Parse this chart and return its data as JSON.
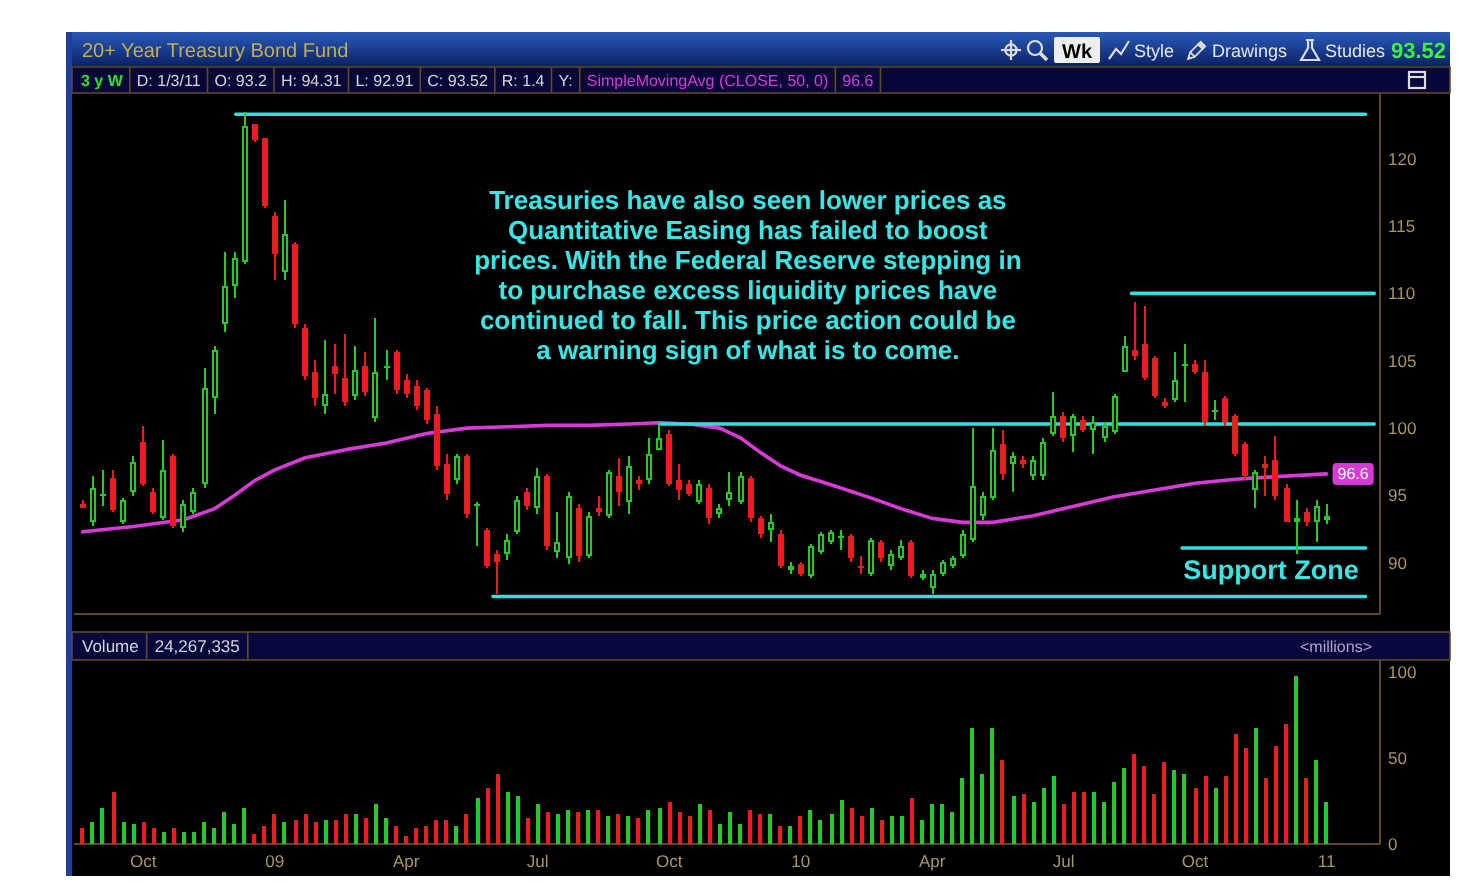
{
  "chart_data": [
    {
      "type": "candlestick",
      "title": "20+ Year Treasury Bond Fund",
      "x": [
        "2008-08-25",
        "2008-09-01",
        "2008-09-08",
        "2008-09-15",
        "2008-09-22",
        "2008-09-29",
        "2008-10-06",
        "2008-10-13",
        "2008-10-20",
        "2008-10-27",
        "2008-11-03",
        "2008-11-10",
        "2008-11-17",
        "2008-11-24",
        "2008-12-01",
        "2008-12-08",
        "2008-12-15",
        "2008-12-22",
        "2008-12-29",
        "2009-01-05",
        "2009-01-12",
        "2009-01-19",
        "2009-01-26",
        "2009-02-02",
        "2009-02-09",
        "2009-02-16",
        "2009-02-23",
        "2009-03-02",
        "2009-03-09",
        "2009-03-16",
        "2009-03-23",
        "2009-03-30",
        "2009-04-06",
        "2009-04-13",
        "2009-04-20",
        "2009-04-27",
        "2009-05-04",
        "2009-05-11",
        "2009-05-18",
        "2009-05-25",
        "2009-06-01",
        "2009-06-08",
        "2009-06-15",
        "2009-06-22",
        "2009-06-29",
        "2009-07-06",
        "2009-07-13",
        "2009-07-20",
        "2009-07-27",
        "2009-08-03",
        "2009-08-10",
        "2009-08-17",
        "2009-08-24",
        "2009-08-31",
        "2009-09-07",
        "2009-09-14",
        "2009-09-21",
        "2009-09-28",
        "2009-10-05",
        "2009-10-12",
        "2009-10-19",
        "2009-10-26",
        "2009-11-02",
        "2009-11-09",
        "2009-11-16",
        "2009-11-23",
        "2009-11-30",
        "2009-12-07",
        "2009-12-14",
        "2009-12-21",
        "2009-12-28",
        "2010-01-04",
        "2010-01-11",
        "2010-01-18",
        "2010-01-25",
        "2010-02-01",
        "2010-02-08",
        "2010-02-15",
        "2010-02-22",
        "2010-03-01",
        "2010-03-08",
        "2010-03-15",
        "2010-03-22",
        "2010-03-29",
        "2010-04-05",
        "2010-04-12",
        "2010-04-19",
        "2010-04-26",
        "2010-05-03",
        "2010-05-10",
        "2010-05-17",
        "2010-05-24",
        "2010-05-31",
        "2010-06-07",
        "2010-06-14",
        "2010-06-21",
        "2010-06-28",
        "2010-07-05",
        "2010-07-12",
        "2010-07-19",
        "2010-07-26",
        "2010-08-02",
        "2010-08-09",
        "2010-08-16",
        "2010-08-23",
        "2010-08-30",
        "2010-09-06",
        "2010-09-13",
        "2010-09-20",
        "2010-09-27",
        "2010-10-04",
        "2010-10-11",
        "2010-10-18",
        "2010-10-25",
        "2010-11-01",
        "2010-11-08",
        "2010-11-15",
        "2010-11-22",
        "2010-11-29",
        "2010-12-06",
        "2010-12-13",
        "2010-12-20",
        "2010-12-27",
        "2011-01-03"
      ],
      "ohlc": [
        [
          94.3,
          94.6,
          94.0,
          94.1
        ],
        [
          93.1,
          96.4,
          92.8,
          95.6
        ],
        [
          94.9,
          96.9,
          94.2,
          95.1
        ],
        [
          96.3,
          96.9,
          93.7,
          93.9
        ],
        [
          93.0,
          94.8,
          92.9,
          94.6
        ],
        [
          95.2,
          97.9,
          94.9,
          97.5
        ],
        [
          98.9,
          100.1,
          95.7,
          95.9
        ],
        [
          95.2,
          95.5,
          93.6,
          93.8
        ],
        [
          93.4,
          99.1,
          93.2,
          96.9
        ],
        [
          97.9,
          98.1,
          92.6,
          92.8
        ],
        [
          92.6,
          94.7,
          92.3,
          94.4
        ],
        [
          93.8,
          95.6,
          93.6,
          95.3
        ],
        [
          95.8,
          104.5,
          95.6,
          103.0
        ],
        [
          102.2,
          106.1,
          101.1,
          105.8
        ],
        [
          107.8,
          113.0,
          107.1,
          110.6
        ],
        [
          110.5,
          113.0,
          109.6,
          112.6
        ],
        [
          112.4,
          123.4,
          112.2,
          122.4
        ],
        [
          122.5,
          122.6,
          121.2,
          121.4
        ],
        [
          121.5,
          121.6,
          116.3,
          116.5
        ],
        [
          115.7,
          116.0,
          111.0,
          112.9
        ],
        [
          111.6,
          117.0,
          111.0,
          114.4
        ],
        [
          113.6,
          113.8,
          107.5,
          107.7
        ],
        [
          107.5,
          107.7,
          103.6,
          103.8
        ],
        [
          104.1,
          105.1,
          101.6,
          102.2
        ],
        [
          101.6,
          106.6,
          101.1,
          102.5
        ],
        [
          104.6,
          106.3,
          102.6,
          104.0
        ],
        [
          103.7,
          107.0,
          101.6,
          101.9
        ],
        [
          102.4,
          106.1,
          102.1,
          104.3
        ],
        [
          104.6,
          105.6,
          102.4,
          102.7
        ],
        [
          100.7,
          108.1,
          100.5,
          104.1
        ],
        [
          104.5,
          105.8,
          103.6,
          104.6
        ],
        [
          105.6,
          105.8,
          102.6,
          102.8
        ],
        [
          103.6,
          104.0,
          102.2,
          102.5
        ],
        [
          103.1,
          103.5,
          101.4,
          101.6
        ],
        [
          102.8,
          103.0,
          100.3,
          100.6
        ],
        [
          101.1,
          101.6,
          96.9,
          97.2
        ],
        [
          97.4,
          98.1,
          94.7,
          95.1
        ],
        [
          96.1,
          98.1,
          95.9,
          98.0
        ],
        [
          98.0,
          98.1,
          93.4,
          93.6
        ],
        [
          94.3,
          94.5,
          91.2,
          94.4
        ],
        [
          92.4,
          92.6,
          89.6,
          89.8
        ],
        [
          90.6,
          91.0,
          87.7,
          90.1
        ],
        [
          90.6,
          92.2,
          90.2,
          91.7
        ],
        [
          92.3,
          95.0,
          92.1,
          94.7
        ],
        [
          95.2,
          95.5,
          93.9,
          94.2
        ],
        [
          94.0,
          97.1,
          93.6,
          96.4
        ],
        [
          96.4,
          96.6,
          91.0,
          91.2
        ],
        [
          90.8,
          93.8,
          90.3,
          91.6
        ],
        [
          90.3,
          95.2,
          89.9,
          95.0
        ],
        [
          94.0,
          94.3,
          90.0,
          90.5
        ],
        [
          90.5,
          93.8,
          90.3,
          93.5
        ],
        [
          94.1,
          95.0,
          93.5,
          93.8
        ],
        [
          93.5,
          96.9,
          93.3,
          96.7
        ],
        [
          96.4,
          97.8,
          94.2,
          95.2
        ],
        [
          94.5,
          97.9,
          93.6,
          97.2
        ],
        [
          96.2,
          96.5,
          95.4,
          95.8
        ],
        [
          96.2,
          99.2,
          95.9,
          98.1
        ],
        [
          98.4,
          100.4,
          98.3,
          99.2
        ],
        [
          99.6,
          99.8,
          95.7,
          95.9
        ],
        [
          96.2,
          97.4,
          94.7,
          95.4
        ],
        [
          95.8,
          96.2,
          94.9,
          95.1
        ],
        [
          94.5,
          96.2,
          94.3,
          95.9
        ],
        [
          95.6,
          95.8,
          92.9,
          93.3
        ],
        [
          93.6,
          94.4,
          93.4,
          94.1
        ],
        [
          94.7,
          96.7,
          94.2,
          95.3
        ],
        [
          94.5,
          96.7,
          94.3,
          96.5
        ],
        [
          96.3,
          96.5,
          93.1,
          93.3
        ],
        [
          93.3,
          93.5,
          91.9,
          92.1
        ],
        [
          92.5,
          93.6,
          91.5,
          93.0
        ],
        [
          92.2,
          92.4,
          89.6,
          89.8
        ],
        [
          89.5,
          90.0,
          89.2,
          89.8
        ],
        [
          89.9,
          90.1,
          89.0,
          89.2
        ],
        [
          89.0,
          91.4,
          88.9,
          91.2
        ],
        [
          90.8,
          92.3,
          90.6,
          92.1
        ],
        [
          91.6,
          92.5,
          91.4,
          92.3
        ],
        [
          91.9,
          92.5,
          90.9,
          92.0
        ],
        [
          92.0,
          92.2,
          90.0,
          90.3
        ],
        [
          89.8,
          90.5,
          89.1,
          89.6
        ],
        [
          89.2,
          91.9,
          89.0,
          91.7
        ],
        [
          91.5,
          91.7,
          90.1,
          90.3
        ],
        [
          89.8,
          91.0,
          89.5,
          90.7
        ],
        [
          90.4,
          91.7,
          90.2,
          91.2
        ],
        [
          91.5,
          91.7,
          88.8,
          89.0
        ],
        [
          88.9,
          89.5,
          88.7,
          89.2
        ],
        [
          88.2,
          89.5,
          87.7,
          89.2
        ],
        [
          89.2,
          90.2,
          89.0,
          90.0
        ],
        [
          89.8,
          90.5,
          89.6,
          90.3
        ],
        [
          90.5,
          92.4,
          90.3,
          92.2
        ],
        [
          91.7,
          100.0,
          91.5,
          95.7
        ],
        [
          93.5,
          95.2,
          93.2,
          94.9
        ],
        [
          94.8,
          100.0,
          94.7,
          98.4
        ],
        [
          98.8,
          99.9,
          96.2,
          96.6
        ],
        [
          97.4,
          98.2,
          95.2,
          97.9
        ],
        [
          97.7,
          98.0,
          97.1,
          97.4
        ],
        [
          96.4,
          97.9,
          96.2,
          97.7
        ],
        [
          96.4,
          99.3,
          96.2,
          99.0
        ],
        [
          99.5,
          102.7,
          99.4,
          100.9
        ],
        [
          100.9,
          101.2,
          99.0,
          99.3
        ],
        [
          99.4,
          101.1,
          98.2,
          100.9
        ],
        [
          100.6,
          100.9,
          99.7,
          99.9
        ],
        [
          99.9,
          100.9,
          98.1,
          100.4
        ],
        [
          99.2,
          100.4,
          98.9,
          100.1
        ],
        [
          99.7,
          102.6,
          99.5,
          102.4
        ],
        [
          104.2,
          106.8,
          104.1,
          106.1
        ],
        [
          105.8,
          109.4,
          105.1,
          105.3
        ],
        [
          106.3,
          109.0,
          103.6,
          103.7
        ],
        [
          105.2,
          105.4,
          102.2,
          102.4
        ],
        [
          102.0,
          102.2,
          101.5,
          101.7
        ],
        [
          102.1,
          105.6,
          102.0,
          103.6
        ],
        [
          104.7,
          106.3,
          101.9,
          104.8
        ],
        [
          104.8,
          105.0,
          104.0,
          104.2
        ],
        [
          104.2,
          105.1,
          100.2,
          100.4
        ],
        [
          101.3,
          102.1,
          100.6,
          101.4
        ],
        [
          102.2,
          102.4,
          100.2,
          100.4
        ],
        [
          100.9,
          101.1,
          97.9,
          98.1
        ],
        [
          98.8,
          99.0,
          96.2,
          96.4
        ],
        [
          95.4,
          96.9,
          94.0,
          96.7
        ],
        [
          97.4,
          97.9,
          95.0,
          97.1
        ],
        [
          97.7,
          99.4,
          94.7,
          95.0
        ],
        [
          95.6,
          95.8,
          93.0,
          93.1
        ],
        [
          93.1,
          94.7,
          90.7,
          93.3
        ],
        [
          93.8,
          94.0,
          92.8,
          93.0
        ],
        [
          93.0,
          94.7,
          91.5,
          94.2
        ],
        [
          93.2,
          94.31,
          92.91,
          93.52
        ]
      ],
      "colors": [
        "#ee1c1c",
        "#22cc22",
        "#22cc22",
        "#ee1c1c",
        "#22cc22",
        "#22cc22",
        "#ee1c1c",
        "#ee1c1c",
        "#22cc22",
        "#ee1c1c",
        "#22cc22",
        "#22cc22",
        "#22cc22",
        "#22cc22",
        "#22cc22",
        "#22cc22",
        "#22cc22",
        "#ee1c1c",
        "#ee1c1c",
        "#ee1c1c",
        "#22cc22",
        "#ee1c1c",
        "#ee1c1c",
        "#ee1c1c",
        "#22cc22",
        "#ee1c1c",
        "#ee1c1c",
        "#22cc22",
        "#ee1c1c",
        "#22cc22",
        "#22cc22",
        "#ee1c1c",
        "#ee1c1c",
        "#ee1c1c",
        "#ee1c1c",
        "#ee1c1c",
        "#ee1c1c",
        "#22cc22",
        "#ee1c1c",
        "#22cc22",
        "#ee1c1c",
        "#ee1c1c",
        "#22cc22",
        "#22cc22",
        "#ee1c1c",
        "#22cc22",
        "#ee1c1c",
        "#22cc22",
        "#22cc22",
        "#ee1c1c",
        "#22cc22",
        "#ee1c1c",
        "#22cc22",
        "#ee1c1c",
        "#22cc22",
        "#ee1c1c",
        "#22cc22",
        "#22cc22",
        "#ee1c1c",
        "#ee1c1c",
        "#ee1c1c",
        "#22cc22",
        "#ee1c1c",
        "#22cc22",
        "#22cc22",
        "#22cc22",
        "#ee1c1c",
        "#ee1c1c",
        "#22cc22",
        "#ee1c1c",
        "#22cc22",
        "#ee1c1c",
        "#22cc22",
        "#22cc22",
        "#22cc22",
        "#22cc22",
        "#ee1c1c",
        "#ee1c1c",
        "#22cc22",
        "#ee1c1c",
        "#22cc22",
        "#22cc22",
        "#ee1c1c",
        "#22cc22",
        "#22cc22",
        "#22cc22",
        "#22cc22",
        "#22cc22",
        "#22cc22",
        "#22cc22",
        "#22cc22",
        "#ee1c1c",
        "#22cc22",
        "#ee1c1c",
        "#22cc22",
        "#22cc22",
        "#22cc22",
        "#ee1c1c",
        "#22cc22",
        "#ee1c1c",
        "#22cc22",
        "#22cc22",
        "#22cc22",
        "#22cc22",
        "#ee1c1c",
        "#ee1c1c",
        "#ee1c1c",
        "#ee1c1c",
        "#22cc22",
        "#22cc22",
        "#ee1c1c",
        "#ee1c1c",
        "#22cc22",
        "#ee1c1c",
        "#ee1c1c",
        "#ee1c1c",
        "#22cc22",
        "#ee1c1c",
        "#ee1c1c",
        "#ee1c1c",
        "#22cc22",
        "#ee1c1c",
        "#22cc22",
        "#22cc22"
      ],
      "xlim": [
        "2008-08-19",
        "2011-02-09"
      ],
      "ylim": [
        86.2,
        124.8
      ],
      "yticks": [
        90,
        95,
        100,
        105,
        110,
        115,
        120
      ],
      "tick_labels": "y",
      "series": [
        {
          "type": "line",
          "name": "SimpleMovingAvg (CLOSE, 50, 0)",
          "color": "#d83ad8",
          "x": [
            "2008-08-25",
            "2008-09-29",
            "2008-11-03",
            "2008-11-24",
            "2008-12-08",
            "2008-12-22",
            "2009-01-05",
            "2009-01-26",
            "2009-02-23",
            "2009-03-23",
            "2009-04-20",
            "2009-05-18",
            "2009-06-15",
            "2009-07-13",
            "2009-08-10",
            "2009-09-07",
            "2009-09-28",
            "2009-10-19",
            "2009-11-09",
            "2009-11-23",
            "2009-12-07",
            "2009-12-21",
            "2010-01-04",
            "2010-01-25",
            "2010-02-22",
            "2010-03-15",
            "2010-04-05",
            "2010-04-26",
            "2010-05-17",
            "2010-06-14",
            "2010-07-12",
            "2010-08-09",
            "2010-09-06",
            "2010-10-04",
            "2010-11-01",
            "2010-11-29",
            "2011-01-03"
          ],
          "values": [
            92.3,
            92.7,
            93.2,
            94.0,
            95.0,
            96.1,
            96.9,
            97.8,
            98.4,
            98.9,
            99.6,
            100.0,
            100.1,
            100.2,
            100.2,
            100.3,
            100.4,
            100.3,
            100.0,
            99.3,
            98.2,
            97.2,
            96.5,
            95.8,
            94.8,
            94.0,
            93.3,
            93.0,
            93.0,
            93.5,
            94.2,
            94.9,
            95.4,
            95.9,
            96.2,
            96.4,
            96.6
          ],
          "value_labels": [
            null,
            null,
            null,
            null,
            null,
            null,
            null,
            null,
            null,
            null,
            null,
            null,
            null,
            null,
            null,
            null,
            null,
            null,
            null,
            null,
            null,
            null,
            null,
            null,
            null,
            null,
            null,
            null,
            null,
            null,
            null,
            null,
            null,
            null,
            null,
            null,
            "96.6"
          ]
        },
        {
          "type": "line",
          "color": "#33dede",
          "x": [
            "2008-12-09",
            "2011-01-30"
          ],
          "values": [
            123.3,
            123.3
          ]
        },
        {
          "type": "line",
          "color": "#33dede",
          "x": [
            "2010-08-21",
            "2011-02-05"
          ],
          "values": [
            110,
            110
          ]
        },
        {
          "type": "line",
          "color": "#33dede",
          "x": [
            "2009-09-28",
            "2011-02-05"
          ],
          "values": [
            100.3,
            100.3
          ]
        },
        {
          "type": "line",
          "color": "#33dede",
          "x": [
            "2010-09-25",
            "2011-01-30"
          ],
          "values": [
            91.1,
            91.1
          ]
        },
        {
          "type": "line",
          "color": "#33dede",
          "x": [
            "2009-06-05",
            "2011-01-30"
          ],
          "values": [
            87.5,
            87.5
          ]
        }
      ],
      "annotations": [
        "Wk",
        "Style",
        "Drawings",
        "Studies",
        "93.52",
        "3 y W",
        "D: 1/3/11",
        "O: 93.2",
        "H: 94.31",
        "L: 92.91",
        "C: 93.52",
        "R: 1.4",
        "Y:",
        "96.6",
        "Treasuries have also seen lower prices as\nQuantitative Easing has failed to boost\nprices. With the Federal Reserve stepping in\nto purchase excess liquidity prices have\ncontinued to fall. This price action could be\na warning sign of what is to come.",
        "Support Zone"
      ]
    },
    {
      "type": "bar",
      "title": "Volume",
      "ylabel": "<millions>",
      "x": [
        "2008-08-25",
        "2008-09-01",
        "2008-09-08",
        "2008-09-15",
        "2008-09-22",
        "2008-09-29",
        "2008-10-06",
        "2008-10-13",
        "2008-10-20",
        "2008-10-27",
        "2008-11-03",
        "2008-11-10",
        "2008-11-17",
        "2008-11-24",
        "2008-12-01",
        "2008-12-08",
        "2008-12-15",
        "2008-12-22",
        "2008-12-29",
        "2009-01-05",
        "2009-01-12",
        "2009-01-19",
        "2009-01-26",
        "2009-02-02",
        "2009-02-09",
        "2009-02-16",
        "2009-02-23",
        "2009-03-02",
        "2009-03-09",
        "2009-03-16",
        "2009-03-23",
        "2009-03-30",
        "2009-04-06",
        "2009-04-13",
        "2009-04-20",
        "2009-04-27",
        "2009-05-04",
        "2009-05-11",
        "2009-05-18",
        "2009-05-25",
        "2009-06-01",
        "2009-06-08",
        "2009-06-15",
        "2009-06-22",
        "2009-06-29",
        "2009-07-06",
        "2009-07-13",
        "2009-07-20",
        "2009-07-27",
        "2009-08-03",
        "2009-08-10",
        "2009-08-17",
        "2009-08-24",
        "2009-08-31",
        "2009-09-07",
        "2009-09-14",
        "2009-09-21",
        "2009-09-28",
        "2009-10-05",
        "2009-10-12",
        "2009-10-19",
        "2009-10-26",
        "2009-11-02",
        "2009-11-09",
        "2009-11-16",
        "2009-11-23",
        "2009-11-30",
        "2009-12-07",
        "2009-12-14",
        "2009-12-21",
        "2009-12-28",
        "2010-01-04",
        "2010-01-11",
        "2010-01-18",
        "2010-01-25",
        "2010-02-01",
        "2010-02-08",
        "2010-02-15",
        "2010-02-22",
        "2010-03-01",
        "2010-03-08",
        "2010-03-15",
        "2010-03-22",
        "2010-03-29",
        "2010-04-05",
        "2010-04-12",
        "2010-04-19",
        "2010-04-26",
        "2010-05-03",
        "2010-05-10",
        "2010-05-17",
        "2010-05-24",
        "2010-05-31",
        "2010-06-07",
        "2010-06-14",
        "2010-06-21",
        "2010-06-28",
        "2010-07-05",
        "2010-07-12",
        "2010-07-19",
        "2010-07-26",
        "2010-08-02",
        "2010-08-09",
        "2010-08-16",
        "2010-08-23",
        "2010-08-30",
        "2010-09-06",
        "2010-09-13",
        "2010-09-20",
        "2010-09-27",
        "2010-10-04",
        "2010-10-11",
        "2010-10-18",
        "2010-10-25",
        "2010-11-01",
        "2010-11-08",
        "2010-11-15",
        "2010-11-22",
        "2010-11-29",
        "2010-12-06",
        "2010-12-13",
        "2010-12-20",
        "2010-12-27",
        "2011-01-03"
      ],
      "values": [
        9,
        13,
        21,
        30,
        13,
        12,
        13,
        9,
        7,
        9,
        7,
        7,
        13,
        9,
        19,
        12,
        21,
        6,
        11,
        18,
        13,
        14,
        17,
        13,
        14,
        14,
        17,
        18,
        15,
        23,
        15,
        11,
        5,
        9,
        11,
        14,
        14,
        11,
        17,
        27,
        33,
        41,
        30,
        28,
        15,
        23,
        19,
        17,
        20,
        19,
        20,
        20,
        16,
        18,
        16,
        15,
        20,
        21,
        25,
        19,
        16,
        23,
        20,
        12,
        19,
        12,
        20,
        17,
        18,
        11,
        11,
        16,
        20,
        14,
        18,
        26,
        21,
        16,
        21,
        14,
        16,
        16,
        27,
        14,
        23,
        23,
        19,
        38,
        67,
        41,
        68,
        49,
        28,
        29,
        25,
        32,
        40,
        23,
        30,
        30,
        30,
        24,
        36,
        44,
        52,
        45,
        29,
        48,
        43,
        41,
        32,
        40,
        32,
        39,
        64,
        56,
        67,
        38,
        57,
        70,
        98,
        38,
        49,
        24
      ],
      "colors": [
        "#ee1c1c",
        "#22cc22",
        "#22cc22",
        "#ee1c1c",
        "#22cc22",
        "#22cc22",
        "#ee1c1c",
        "#ee1c1c",
        "#22cc22",
        "#ee1c1c",
        "#22cc22",
        "#22cc22",
        "#22cc22",
        "#22cc22",
        "#22cc22",
        "#22cc22",
        "#22cc22",
        "#ee1c1c",
        "#ee1c1c",
        "#ee1c1c",
        "#22cc22",
        "#ee1c1c",
        "#ee1c1c",
        "#ee1c1c",
        "#22cc22",
        "#ee1c1c",
        "#ee1c1c",
        "#22cc22",
        "#ee1c1c",
        "#22cc22",
        "#22cc22",
        "#ee1c1c",
        "#ee1c1c",
        "#ee1c1c",
        "#ee1c1c",
        "#ee1c1c",
        "#ee1c1c",
        "#22cc22",
        "#ee1c1c",
        "#22cc22",
        "#ee1c1c",
        "#ee1c1c",
        "#22cc22",
        "#22cc22",
        "#ee1c1c",
        "#22cc22",
        "#ee1c1c",
        "#22cc22",
        "#22cc22",
        "#ee1c1c",
        "#22cc22",
        "#ee1c1c",
        "#22cc22",
        "#ee1c1c",
        "#22cc22",
        "#ee1c1c",
        "#22cc22",
        "#22cc22",
        "#ee1c1c",
        "#ee1c1c",
        "#ee1c1c",
        "#22cc22",
        "#ee1c1c",
        "#22cc22",
        "#22cc22",
        "#22cc22",
        "#ee1c1c",
        "#ee1c1c",
        "#22cc22",
        "#ee1c1c",
        "#22cc22",
        "#ee1c1c",
        "#22cc22",
        "#22cc22",
        "#22cc22",
        "#22cc22",
        "#ee1c1c",
        "#ee1c1c",
        "#22cc22",
        "#ee1c1c",
        "#22cc22",
        "#22cc22",
        "#ee1c1c",
        "#22cc22",
        "#22cc22",
        "#22cc22",
        "#22cc22",
        "#22cc22",
        "#22cc22",
        "#22cc22",
        "#22cc22",
        "#ee1c1c",
        "#22cc22",
        "#ee1c1c",
        "#22cc22",
        "#22cc22",
        "#22cc22",
        "#ee1c1c",
        "#ee1c1c",
        "#ee1c1c",
        "#22cc22",
        "#22cc22",
        "#22cc22",
        "#22cc22",
        "#ee1c1c",
        "#ee1c1c",
        "#ee1c1c",
        "#ee1c1c",
        "#22cc22",
        "#22cc22",
        "#ee1c1c",
        "#ee1c1c",
        "#22cc22",
        "#ee1c1c",
        "#ee1c1c",
        "#ee1c1c",
        "#22cc22",
        "#ee1c1c",
        "#ee1c1c",
        "#ee1c1c",
        "#22cc22",
        "#ee1c1c",
        "#22cc22",
        "#22cc22"
      ],
      "xlim": [
        "2008-08-19",
        "2011-02-09"
      ],
      "xticks": [
        {
          "value": "2008-10-06",
          "label": "Oct"
        },
        {
          "value": "2009-01-05",
          "label": "09"
        },
        {
          "value": "2009-04-06",
          "label": "Apr"
        },
        {
          "value": "2009-07-06",
          "label": "Jul"
        },
        {
          "value": "2009-10-05",
          "label": "Oct"
        },
        {
          "value": "2010-01-04",
          "label": "10"
        },
        {
          "value": "2010-04-05",
          "label": "Apr"
        },
        {
          "value": "2010-07-05",
          "label": "Jul"
        },
        {
          "value": "2010-10-04",
          "label": "Oct"
        },
        {
          "value": "2011-01-03",
          "label": "11"
        }
      ],
      "ylim": [
        0,
        107
      ],
      "yticks": [
        0,
        50,
        100
      ],
      "annotations": [
        "24,267,335"
      ]
    }
  ]
}
